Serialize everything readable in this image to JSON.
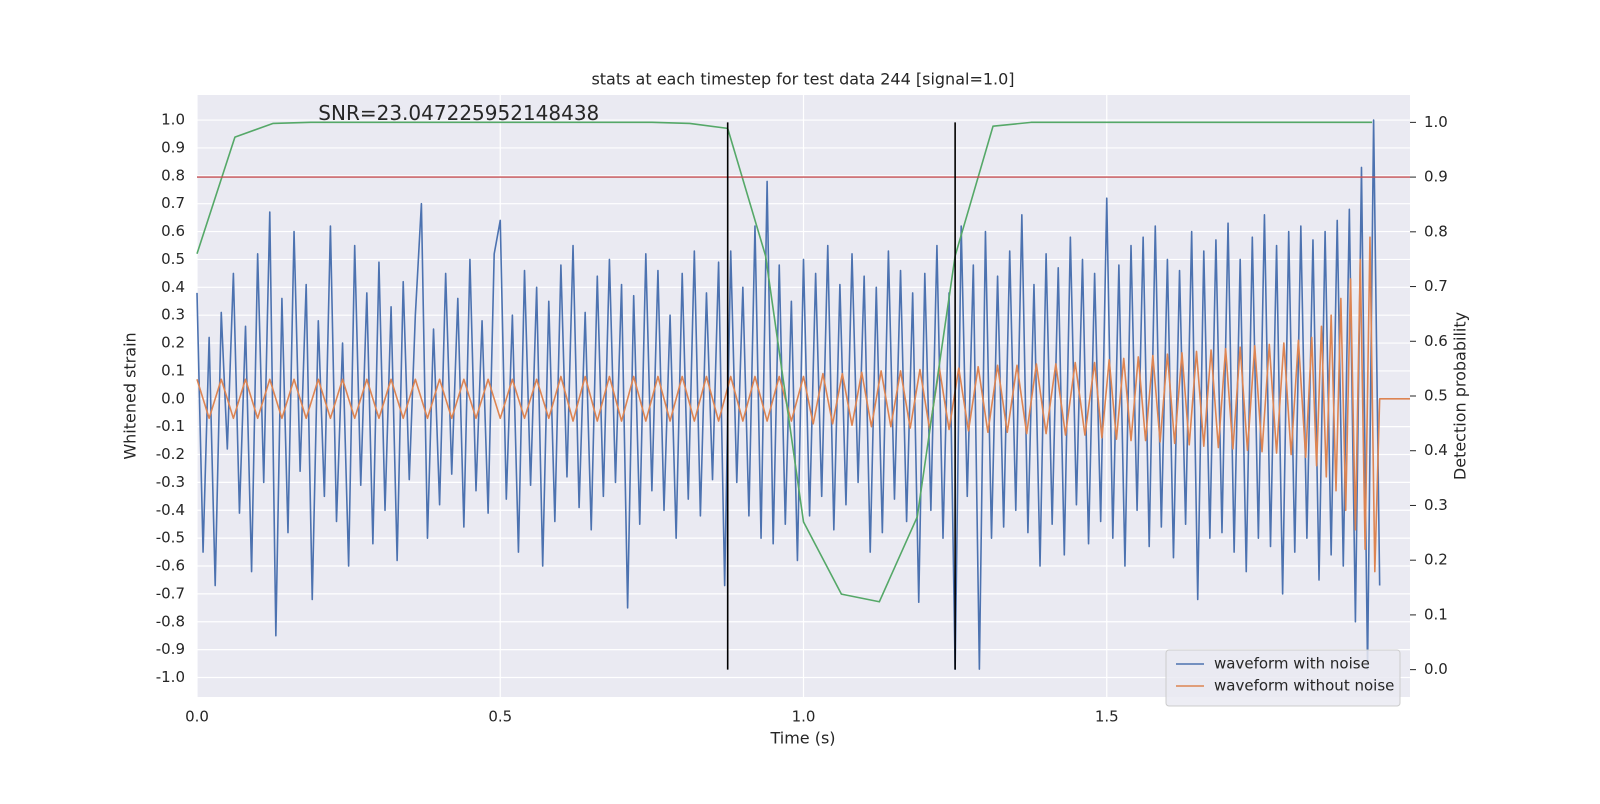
{
  "chart_data": {
    "type": "line",
    "title": "stats at each timestep for test data 244 [signal=1.0]",
    "xlabel": "Time (s)",
    "ylabel": "Whitened strain",
    "y2label": "Detection probability",
    "xlim": [
      0,
      2
    ],
    "ylim": [
      -1.07,
      1.09
    ],
    "y2lim": [
      -0.05,
      1.05
    ],
    "xticks": [
      {
        "value": 0,
        "label": "0.0"
      },
      0.5,
      {
        "value": 1,
        "label": "1.0"
      },
      1.5
    ],
    "yticks": [
      {
        "value": -1,
        "label": "-1.0"
      },
      -0.9,
      -0.8,
      -0.7,
      -0.6,
      -0.5,
      -0.4,
      -0.3,
      -0.2,
      -0.1,
      {
        "value": 0,
        "label": "0.0"
      },
      0.1,
      0.2,
      0.3,
      0.4,
      0.5,
      0.6,
      0.7,
      0.8,
      0.9,
      {
        "value": 1,
        "label": "1.0"
      }
    ],
    "y2ticks": [
      {
        "value": 0,
        "label": "0.0"
      },
      0.1,
      0.2,
      0.3,
      0.4,
      0.5,
      0.6,
      0.7,
      0.8,
      0.9,
      {
        "value": 1,
        "label": "1.0"
      }
    ],
    "grid": true,
    "legend": "lower right",
    "annotation": {
      "text": "SNR=23.047225952148438",
      "x": 0.2,
      "y": 1.0
    },
    "threshold": {
      "value": 0.9,
      "axis": "y2",
      "color": "#c44e52"
    },
    "vlines": {
      "values": [
        0.875,
        1.25
      ],
      "color": "#000000"
    },
    "series": [
      {
        "name": "waveform with noise",
        "color": "#4c72b0",
        "legend": true,
        "x": [
          0,
          0.01,
          0.02,
          0.03,
          0.04,
          0.05,
          0.06,
          0.07,
          0.08,
          0.09,
          0.1,
          0.11,
          0.12,
          0.13,
          0.14,
          0.15,
          0.16,
          0.17,
          0.18,
          0.19,
          0.2,
          0.21,
          0.22,
          0.23,
          0.24,
          0.25,
          0.26,
          0.27,
          0.28,
          0.29,
          0.3,
          0.31,
          0.32,
          0.33,
          0.34,
          0.35,
          0.36,
          0.37,
          0.38,
          0.39,
          0.4,
          0.41,
          0.42,
          0.43,
          0.44,
          0.45,
          0.46,
          0.47,
          0.48,
          0.49,
          0.5,
          0.51,
          0.52,
          0.53,
          0.54,
          0.55,
          0.56,
          0.57,
          0.58,
          0.59,
          0.6,
          0.61,
          0.62,
          0.63,
          0.64,
          0.65,
          0.66,
          0.67,
          0.68,
          0.69,
          0.7,
          0.71,
          0.72,
          0.73,
          0.74,
          0.75,
          0.76,
          0.77,
          0.78,
          0.79,
          0.8,
          0.81,
          0.82,
          0.83,
          0.84,
          0.85,
          0.86,
          0.87,
          0.88,
          0.89,
          0.9,
          0.91,
          0.92,
          0.93,
          0.94,
          0.95,
          0.96,
          0.97,
          0.98,
          0.99,
          1,
          1.01,
          1.02,
          1.03,
          1.04,
          1.05,
          1.06,
          1.07,
          1.08,
          1.09,
          1.1,
          1.11,
          1.12,
          1.13,
          1.14,
          1.15,
          1.16,
          1.17,
          1.18,
          1.19,
          1.2,
          1.21,
          1.22,
          1.23,
          1.24,
          1.25,
          1.26,
          1.27,
          1.28,
          1.29,
          1.3,
          1.31,
          1.32,
          1.33,
          1.34,
          1.35,
          1.36,
          1.37,
          1.38,
          1.39,
          1.4,
          1.41,
          1.42,
          1.43,
          1.44,
          1.45,
          1.46,
          1.47,
          1.48,
          1.49,
          1.5,
          1.51,
          1.52,
          1.53,
          1.54,
          1.55,
          1.56,
          1.57,
          1.58,
          1.59,
          1.6,
          1.61,
          1.62,
          1.63,
          1.64,
          1.65,
          1.66,
          1.67,
          1.68,
          1.69,
          1.7,
          1.71,
          1.72,
          1.73,
          1.74,
          1.75,
          1.76,
          1.77,
          1.78,
          1.79,
          1.8,
          1.81,
          1.82,
          1.83,
          1.84,
          1.85,
          1.86,
          1.87,
          1.88,
          1.89,
          1.9,
          1.91,
          1.92,
          1.93,
          1.94,
          1.95
        ],
        "values": [
          0.38,
          -0.55,
          0.22,
          -0.67,
          0.31,
          -0.18,
          0.45,
          -0.41,
          0.26,
          -0.62,
          0.52,
          -0.3,
          0.67,
          -0.85,
          0.36,
          -0.48,
          0.6,
          -0.26,
          0.41,
          -0.72,
          0.28,
          -0.35,
          0.62,
          -0.44,
          0.2,
          -0.6,
          0.55,
          -0.31,
          0.38,
          -0.52,
          0.49,
          -0.4,
          0.33,
          -0.58,
          0.42,
          -0.29,
          0.3,
          0.7,
          -0.5,
          0.25,
          -0.38,
          0.45,
          -0.27,
          0.36,
          -0.46,
          0.5,
          -0.33,
          0.28,
          -0.41,
          0.52,
          0.64,
          -0.36,
          0.3,
          -0.55,
          0.46,
          -0.31,
          0.4,
          -0.6,
          0.35,
          -0.44,
          0.48,
          -0.28,
          0.55,
          -0.39,
          0.31,
          -0.47,
          0.44,
          -0.35,
          0.5,
          -0.3,
          0.41,
          -0.75,
          0.37,
          -0.45,
          0.52,
          -0.33,
          0.46,
          -0.4,
          0.3,
          -0.5,
          0.45,
          -0.36,
          0.53,
          -0.42,
          0.38,
          -0.29,
          0.49,
          -0.67,
          0.53,
          -0.3,
          0.4,
          -0.42,
          0.62,
          -0.5,
          0.78,
          -0.52,
          0.48,
          -0.45,
          0.35,
          -0.58,
          0.5,
          -0.42,
          0.45,
          -0.35,
          0.55,
          -0.47,
          0.41,
          -0.38,
          0.52,
          -0.3,
          0.44,
          -0.55,
          0.4,
          -0.48,
          0.53,
          -0.36,
          0.46,
          -0.44,
          0.38,
          -0.73,
          0.45,
          -0.4,
          0.55,
          -0.5,
          0.38,
          -0.97,
          0.62,
          -0.35,
          0.48,
          -0.97,
          0.6,
          -0.5,
          0.44,
          -0.46,
          0.53,
          -0.4,
          0.66,
          -0.48,
          0.41,
          -0.6,
          0.52,
          -0.45,
          0.47,
          -0.56,
          0.58,
          -0.38,
          0.5,
          -0.52,
          0.45,
          -0.44,
          0.72,
          -0.5,
          0.48,
          -0.6,
          0.55,
          -0.4,
          0.58,
          -0.53,
          0.62,
          -0.46,
          0.5,
          -0.57,
          0.46,
          -0.45,
          0.6,
          -0.72,
          0.53,
          -0.5,
          0.57,
          -0.48,
          0.63,
          -0.55,
          0.5,
          -0.62,
          0.58,
          -0.5,
          0.66,
          -0.53,
          0.55,
          -0.7,
          0.6,
          -0.55,
          0.62,
          -0.5,
          0.57,
          -0.65,
          0.6,
          -0.56,
          0.64,
          -0.6,
          0.68,
          -0.8,
          0.83,
          -0.97,
          1.0,
          -0.67
        ]
      },
      {
        "name": "waveform without noise",
        "color": "#dd8452",
        "legend": true,
        "x": [
          0,
          0.02,
          0.04,
          0.06,
          0.08,
          0.1,
          0.12,
          0.14,
          0.16,
          0.18,
          0.2,
          0.22,
          0.24,
          0.26,
          0.28,
          0.3,
          0.32,
          0.34,
          0.36,
          0.38,
          0.4,
          0.42,
          0.44,
          0.46,
          0.48,
          0.5,
          0.52,
          0.54,
          0.56,
          0.58,
          0.6,
          0.62,
          0.64,
          0.66,
          0.68,
          0.7,
          0.72,
          0.74,
          0.76,
          0.78,
          0.8,
          0.82,
          0.84,
          0.86,
          0.88,
          0.9,
          0.92,
          0.94,
          0.96,
          0.98,
          1,
          1.016,
          1.032,
          1.048,
          1.064,
          1.08,
          1.096,
          1.112,
          1.128,
          1.144,
          1.16,
          1.176,
          1.192,
          1.208,
          1.224,
          1.24,
          1.256,
          1.272,
          1.288,
          1.304,
          1.32,
          1.336,
          1.352,
          1.368,
          1.384,
          1.4,
          1.416,
          1.432,
          1.448,
          1.464,
          1.48,
          1.492,
          1.504,
          1.516,
          1.528,
          1.54,
          1.552,
          1.564,
          1.576,
          1.588,
          1.6,
          1.612,
          1.624,
          1.636,
          1.648,
          1.66,
          1.672,
          1.684,
          1.696,
          1.708,
          1.72,
          1.732,
          1.744,
          1.756,
          1.768,
          1.78,
          1.792,
          1.804,
          1.816,
          1.828,
          1.838,
          1.846,
          1.854,
          1.862,
          1.87,
          1.878,
          1.886,
          1.894,
          1.902,
          1.91,
          1.918,
          1.926,
          1.934,
          1.942,
          1.95,
          2
        ],
        "values": [
          0.07,
          -0.07,
          0.07,
          -0.07,
          0.07,
          -0.07,
          0.07,
          -0.07,
          0.07,
          -0.07,
          0.07,
          -0.07,
          0.07,
          -0.07,
          0.07,
          -0.07,
          0.07,
          -0.07,
          0.07,
          -0.07,
          0.07,
          -0.07,
          0.07,
          -0.07,
          0.07,
          -0.07,
          0.07,
          -0.07,
          0.07,
          -0.07,
          0.08,
          -0.08,
          0.08,
          -0.08,
          0.08,
          -0.08,
          0.08,
          -0.08,
          0.08,
          -0.08,
          0.08,
          -0.08,
          0.08,
          -0.08,
          0.08,
          -0.08,
          0.08,
          -0.08,
          0.08,
          -0.08,
          0.08,
          -0.09,
          0.09,
          -0.09,
          0.09,
          -0.095,
          0.095,
          -0.1,
          0.1,
          -0.1,
          0.1,
          -0.105,
          0.105,
          -0.11,
          0.11,
          -0.11,
          0.11,
          -0.115,
          0.115,
          -0.12,
          0.12,
          -0.12,
          0.12,
          -0.125,
          0.125,
          -0.125,
          0.125,
          -0.13,
          0.13,
          -0.13,
          0.13,
          -0.14,
          0.14,
          -0.145,
          0.145,
          -0.15,
          0.15,
          -0.15,
          0.155,
          -0.155,
          0.16,
          -0.16,
          0.165,
          -0.165,
          0.17,
          -0.17,
          0.175,
          -0.175,
          0.18,
          -0.18,
          0.185,
          -0.185,
          0.19,
          -0.19,
          0.195,
          -0.195,
          0.2,
          -0.2,
          0.21,
          -0.21,
          0.22,
          -0.24,
          0.26,
          -0.28,
          0.3,
          -0.33,
          0.36,
          -0.4,
          0.43,
          -0.47,
          0.5,
          -0.54,
          0.58,
          -0.62,
          0,
          0
        ]
      },
      {
        "color": "#55a868",
        "axis": "y2",
        "legend": false,
        "x": [
          0,
          0.0625,
          0.125,
          0.1875,
          0.25,
          0.3125,
          0.375,
          0.4375,
          0.5,
          0.5625,
          0.625,
          0.6875,
          0.75,
          0.8125,
          0.875,
          0.9375,
          1,
          1.0625,
          1.125,
          1.1875,
          1.25,
          1.3125,
          1.375,
          1.4375,
          1.5,
          1.5625,
          1.625,
          1.6875,
          1.75,
          1.8125,
          1.875,
          1.9375
        ],
        "values": [
          0.76,
          0.973,
          0.998,
          1,
          1,
          1,
          1,
          1,
          1,
          1,
          1,
          1,
          1,
          0.998,
          0.989,
          0.756,
          0.27,
          0.138,
          0.124,
          0.279,
          0.756,
          0.993,
          1,
          1,
          1,
          1,
          1,
          1,
          1,
          1,
          1,
          1
        ]
      }
    ]
  }
}
